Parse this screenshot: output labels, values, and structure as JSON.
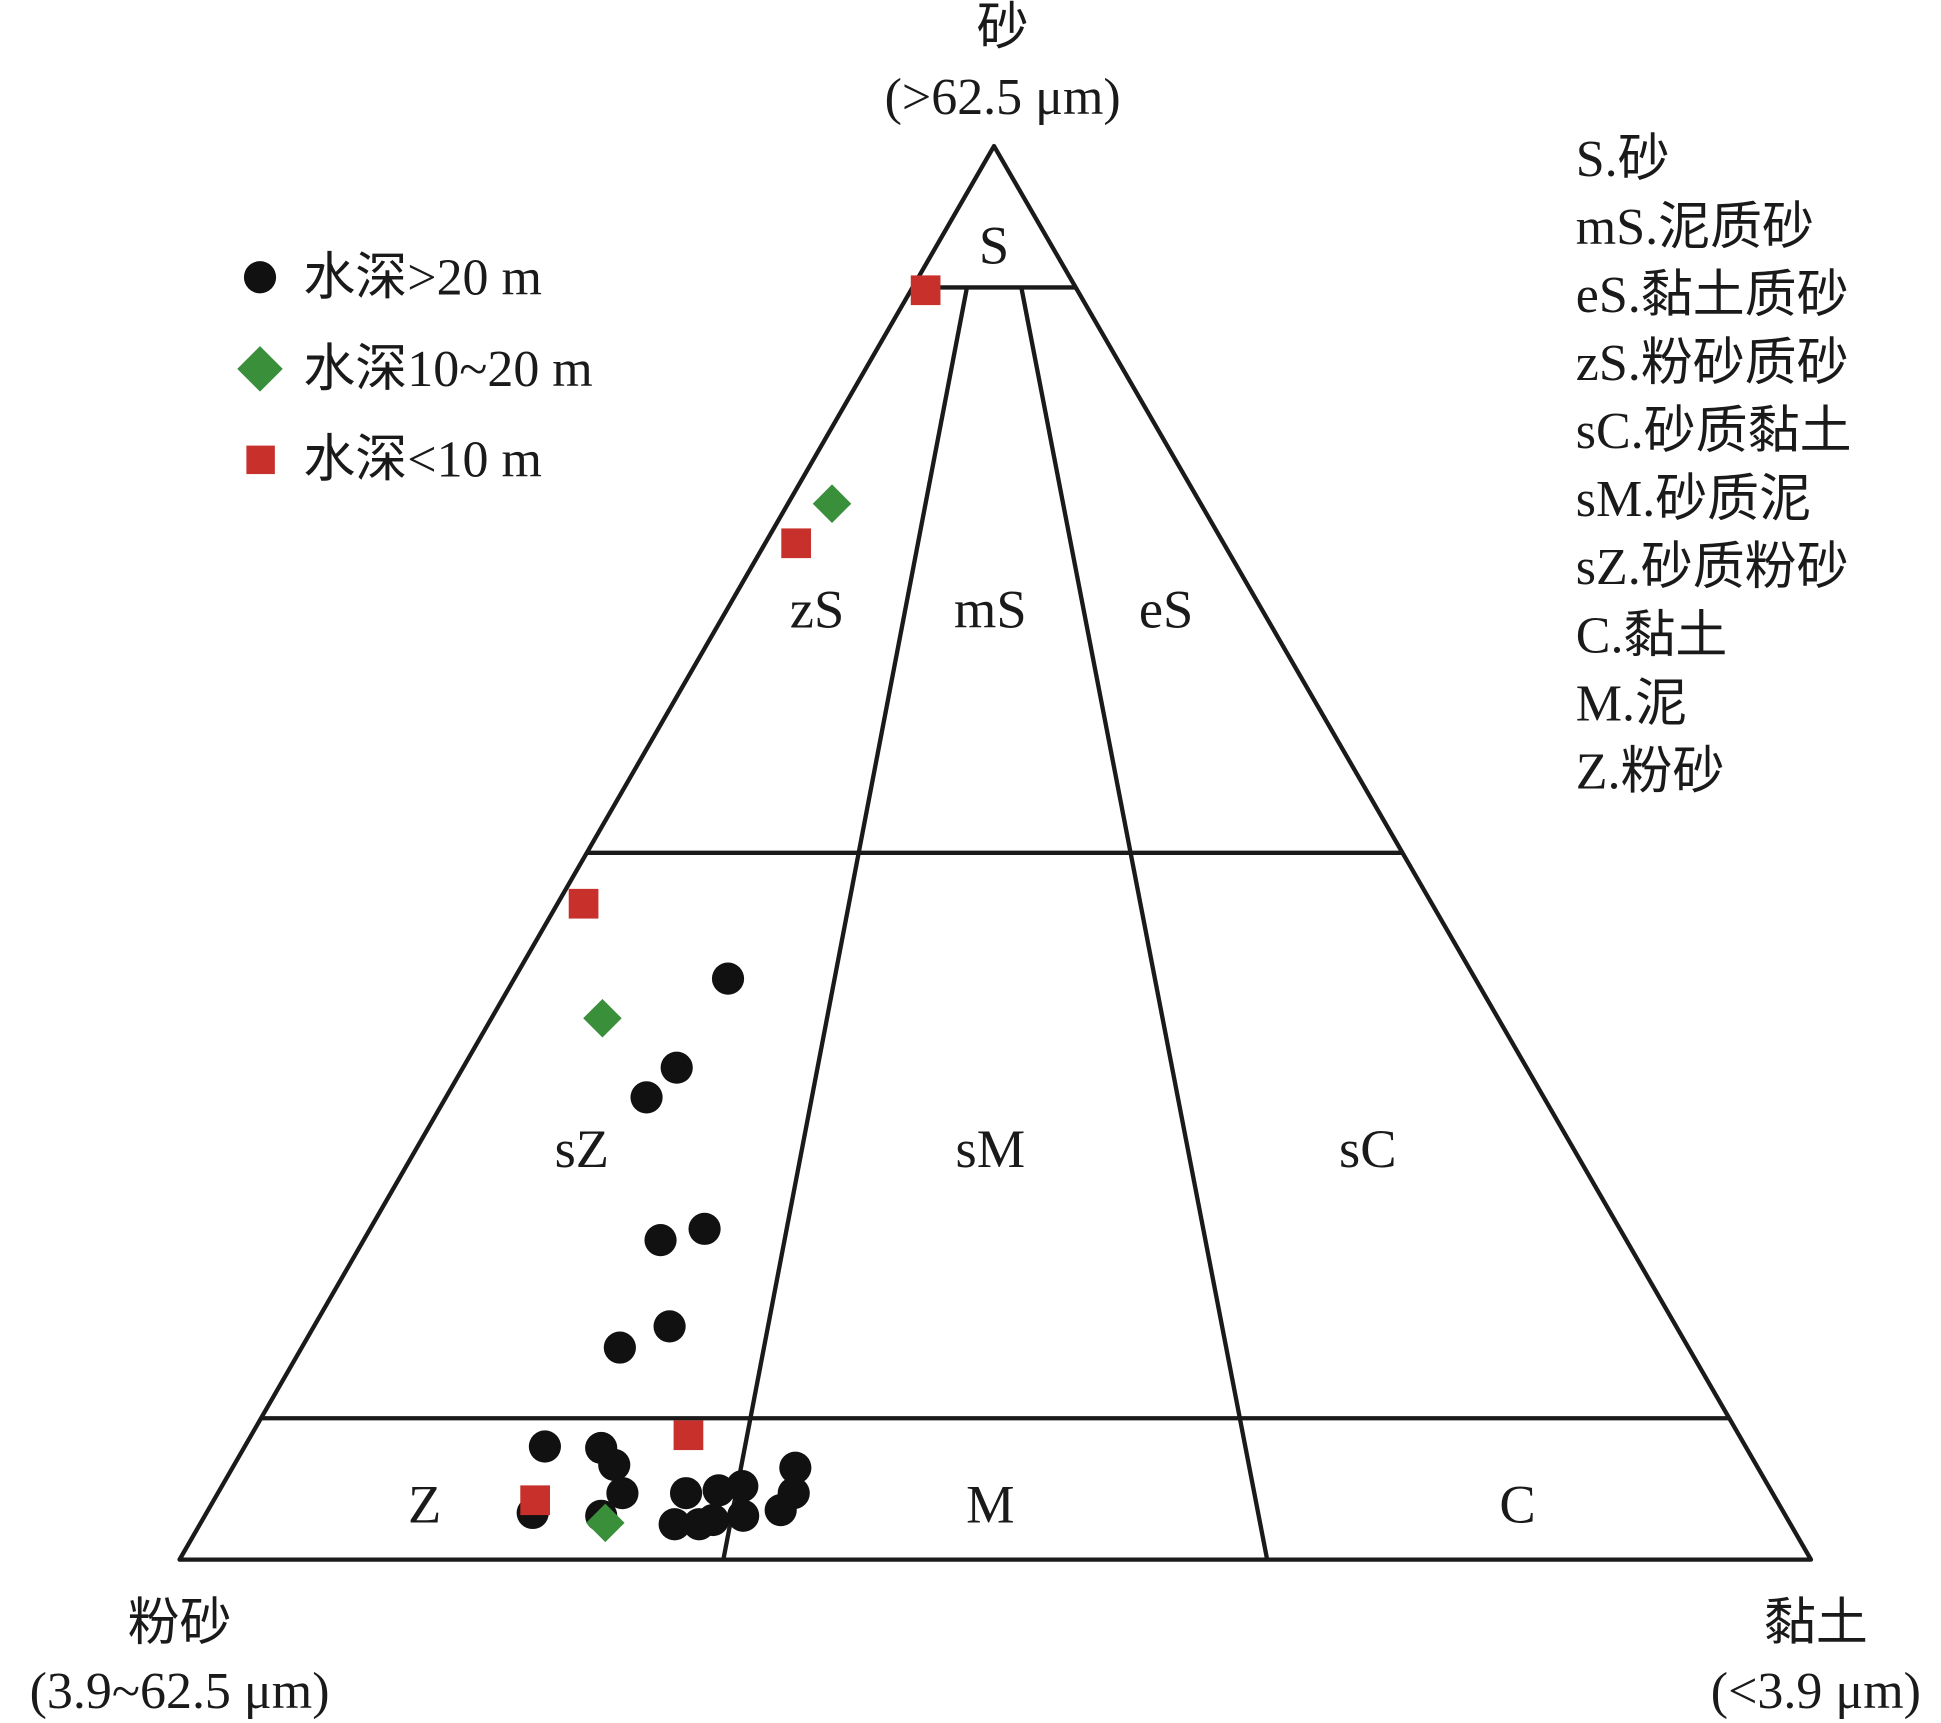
{
  "chart_data": {
    "type": "scatter",
    "subtype": "ternary",
    "axes": {
      "top": {
        "name": "砂",
        "range": "(>62.5 μm)"
      },
      "left": {
        "name": "粉砂",
        "range": "(3.9~62.5 μm)"
      },
      "right": {
        "name": "黏土",
        "range": "(<3.9 μm)"
      }
    },
    "boundaries": {
      "sand_percent": [
        90,
        50,
        10
      ],
      "silt_clay_ratios": [
        "2:1",
        "1:2"
      ]
    },
    "regions": [
      {
        "code": "S"
      },
      {
        "code": "zS"
      },
      {
        "code": "mS"
      },
      {
        "code": "eS"
      },
      {
        "code": "sZ"
      },
      {
        "code": "sM"
      },
      {
        "code": "sC"
      },
      {
        "code": "Z"
      },
      {
        "code": "M"
      },
      {
        "code": "C"
      }
    ],
    "key": [
      "S.砂",
      "mS.泥质砂",
      "eS.黏土质砂",
      "zS.粉砂质砂",
      "sC.砂质黏土",
      "sM.砂质泥",
      "sZ.砂质粉砂",
      "C.黏土",
      "M.泥",
      "Z.粉砂"
    ],
    "legend_placement": "top-left",
    "series": [
      {
        "name": "水深>20 m",
        "marker": "circle",
        "color": "#111111",
        "points": [
          [
            41.1,
            45.8,
            13.1
          ],
          [
            34.8,
            52.1,
            13.1
          ],
          [
            32.7,
            55.0,
            12.3
          ],
          [
            23.4,
            56.1,
            20.5
          ],
          [
            22.6,
            59.2,
            18.2
          ],
          [
            16.5,
            61.7,
            21.8
          ],
          [
            15.0,
            65.5,
            19.5
          ],
          [
            8.0,
            73.6,
            18.4
          ],
          [
            7.9,
            70.2,
            21.9
          ],
          [
            6.7,
            70.0,
            23.3
          ],
          [
            4.7,
            70.5,
            24.8
          ],
          [
            3.3,
            76.7,
            20.0
          ],
          [
            3.1,
            72.6,
            24.3
          ],
          [
            4.7,
            66.6,
            28.7
          ],
          [
            2.5,
            68.4,
            29.1
          ],
          [
            2.5,
            66.9,
            30.6
          ],
          [
            4.9,
            64.5,
            30.6
          ],
          [
            5.2,
            62.9,
            31.9
          ],
          [
            3.1,
            63.9,
            33.0
          ],
          [
            6.5,
            59.0,
            34.5
          ],
          [
            4.7,
            60.0,
            35.3
          ],
          [
            3.5,
            61.4,
            35.1
          ],
          [
            2.8,
            65.9,
            31.3
          ]
        ]
      },
      {
        "name": "水深10~20 m",
        "marker": "diamond",
        "color": "#3a8f3a",
        "points": [
          [
            74.7,
            22.6,
            2.7
          ],
          [
            38.3,
            54.9,
            6.8
          ],
          [
            2.6,
            72.6,
            24.8
          ]
        ]
      },
      {
        "name": "水深<10 m",
        "marker": "square",
        "color": "#c8302c",
        "points": [
          [
            89.8,
            9.3,
            0.9
          ],
          [
            71.9,
            26.2,
            1.9
          ],
          [
            46.4,
            52.0,
            1.6
          ],
          [
            8.8,
            64.4,
            26.8
          ],
          [
            4.2,
            76.1,
            19.7
          ]
        ]
      }
    ],
    "point_order": "[sand %, silt %, clay %]"
  }
}
